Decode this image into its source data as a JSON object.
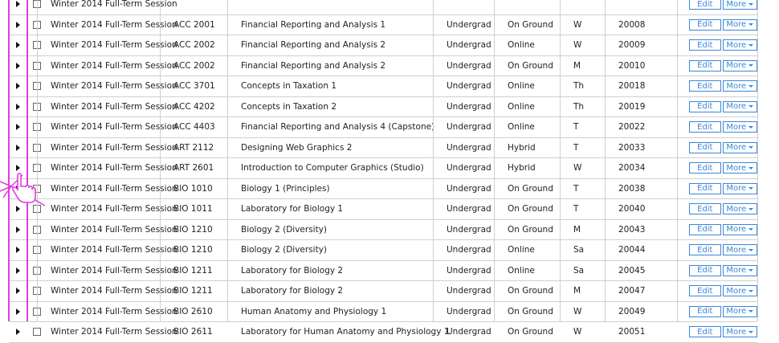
{
  "actions": {
    "edit_label": "Edit",
    "more_label": "More"
  },
  "rows": [
    {
      "term": "Winter 2014 Full-Term Session",
      "code": "",
      "title": "",
      "level": "",
      "mode": "",
      "day": "",
      "number": ""
    },
    {
      "term": "Winter 2014 Full-Term Session",
      "code": "ACC 2001",
      "title": "Financial Reporting and Analysis 1",
      "level": "Undergrad",
      "mode": "On Ground",
      "day": "W",
      "number": "20008"
    },
    {
      "term": "Winter 2014 Full-Term Session",
      "code": "ACC 2002",
      "title": "Financial Reporting and Analysis 2",
      "level": "Undergrad",
      "mode": "Online",
      "day": "W",
      "number": "20009"
    },
    {
      "term": "Winter 2014 Full-Term Session",
      "code": "ACC 2002",
      "title": "Financial Reporting and Analysis 2",
      "level": "Undergrad",
      "mode": "On Ground",
      "day": "M",
      "number": "20010"
    },
    {
      "term": "Winter 2014 Full-Term Session",
      "code": "ACC 3701",
      "title": "Concepts in Taxation 1",
      "level": "Undergrad",
      "mode": "Online",
      "day": "Th",
      "number": "20018"
    },
    {
      "term": "Winter 2014 Full-Term Session",
      "code": "ACC 4202",
      "title": "Concepts in Taxation 2",
      "level": "Undergrad",
      "mode": "Online",
      "day": "Th",
      "number": "20019"
    },
    {
      "term": "Winter 2014 Full-Term Session",
      "code": "ACC 4403",
      "title": "Financial Reporting and Analysis 4 (Capstone)",
      "level": "Undergrad",
      "mode": "Online",
      "day": "T",
      "number": "20022"
    },
    {
      "term": "Winter 2014 Full-Term Session",
      "code": "ART 2112",
      "title": "Designing Web Graphics 2",
      "level": "Undergrad",
      "mode": "Hybrid",
      "day": "T",
      "number": "20033"
    },
    {
      "term": "Winter 2014 Full-Term Session",
      "code": "ART 2601",
      "title": "Introduction to Computer Graphics (Studio)",
      "level": "Undergrad",
      "mode": "Hybrid",
      "day": "W",
      "number": "20034"
    },
    {
      "term": "Winter 2014 Full-Term Session",
      "code": "BIO 1010",
      "title": "Biology 1 (Principles)",
      "level": "Undergrad",
      "mode": "On Ground",
      "day": "T",
      "number": "20038"
    },
    {
      "term": "Winter 2014 Full-Term Session",
      "code": "BIO 1011",
      "title": "Laboratory for Biology 1",
      "level": "Undergrad",
      "mode": "On Ground",
      "day": "T",
      "number": "20040"
    },
    {
      "term": "Winter 2014 Full-Term Session",
      "code": "BIO 1210",
      "title": "Biology 2 (Diversity)",
      "level": "Undergrad",
      "mode": "On Ground",
      "day": "M",
      "number": "20043"
    },
    {
      "term": "Winter 2014 Full-Term Session",
      "code": "BIO 1210",
      "title": "Biology 2 (Diversity)",
      "level": "Undergrad",
      "mode": "Online",
      "day": "Sa",
      "number": "20044"
    },
    {
      "term": "Winter 2014 Full-Term Session",
      "code": "BIO 1211",
      "title": "Laboratory for Biology 2",
      "level": "Undergrad",
      "mode": "Online",
      "day": "Sa",
      "number": "20045"
    },
    {
      "term": "Winter 2014 Full-Term Session",
      "code": "BIO 1211",
      "title": "Laboratory for Biology 2",
      "level": "Undergrad",
      "mode": "On Ground",
      "day": "M",
      "number": "20047"
    },
    {
      "term": "Winter 2014 Full-Term Session",
      "code": "BIO 2610",
      "title": "Human Anatomy and Physiology 1",
      "level": "Undergrad",
      "mode": "On Ground",
      "day": "W",
      "number": "20049"
    },
    {
      "term": "Winter 2014 Full-Term Session",
      "code": "BIO 2611",
      "title": "Laboratory for Human Anatomy and Physiology 1",
      "level": "Undergrad",
      "mode": "On Ground",
      "day": "W",
      "number": "20051"
    }
  ]
}
